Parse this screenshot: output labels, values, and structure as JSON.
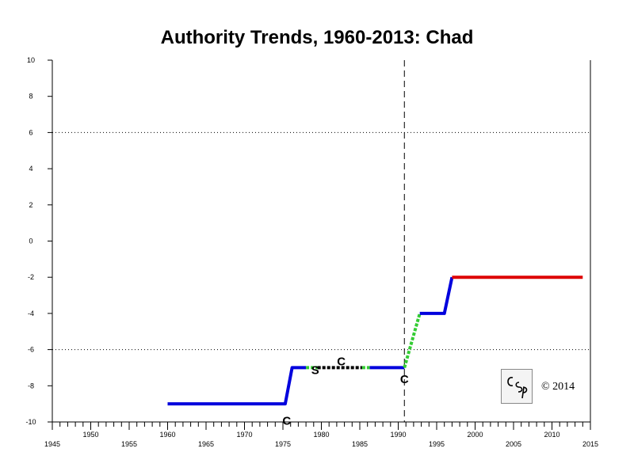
{
  "chart_data": {
    "type": "line",
    "title": "Authority Trends, 1960-2013: Chad",
    "xlabel": "",
    "ylabel": "",
    "xlim": [
      1945,
      2015
    ],
    "ylim": [
      -10,
      10
    ],
    "y_ticks": [
      10,
      8,
      6,
      4,
      2,
      0,
      -2,
      -4,
      -6,
      -8,
      -10
    ],
    "x_ticks_lower": [
      1945,
      1955,
      1965,
      1975,
      1985,
      1995,
      2005,
      2015
    ],
    "x_ticks_upper": [
      1950,
      1960,
      1970,
      1980,
      1990,
      2000,
      2010
    ],
    "grid": "dotted reference lines at +6 and -6",
    "reference_lines": [
      {
        "axis": "y",
        "value": 6,
        "style": "dotted"
      },
      {
        "axis": "y",
        "value": -6,
        "style": "dotted"
      },
      {
        "axis": "x",
        "value": 1990.8,
        "style": "dashed"
      }
    ],
    "segments": [
      {
        "style": "solid",
        "color": "#0000dd",
        "points": [
          [
            1960,
            -9
          ],
          [
            1975.3,
            -9
          ],
          [
            1976.2,
            -7
          ],
          [
            1978,
            -7
          ]
        ]
      },
      {
        "style": "dotted",
        "color": "#33cc33",
        "points": [
          [
            1978,
            -7
          ],
          [
            1979.5,
            -7
          ]
        ]
      },
      {
        "style": "dotted",
        "color": "#000000",
        "points": [
          [
            1979.5,
            -7
          ],
          [
            1985.3,
            -7
          ]
        ]
      },
      {
        "style": "dotted",
        "color": "#33cc33",
        "points": [
          [
            1985.3,
            -7
          ],
          [
            1986.3,
            -7
          ]
        ]
      },
      {
        "style": "solid",
        "color": "#0000dd",
        "points": [
          [
            1986.3,
            -7
          ],
          [
            1990.8,
            -7
          ]
        ]
      },
      {
        "style": "dotted",
        "color": "#33cc33",
        "points": [
          [
            1990.8,
            -7
          ],
          [
            1992.8,
            -4
          ]
        ]
      },
      {
        "style": "solid",
        "color": "#0000dd",
        "points": [
          [
            1992.8,
            -4
          ],
          [
            1996,
            -4
          ],
          [
            1997,
            -2
          ]
        ]
      },
      {
        "style": "solid",
        "color": "#dd0000",
        "points": [
          [
            1997,
            -2
          ],
          [
            2014,
            -2
          ]
        ]
      }
    ],
    "annotations": [
      {
        "text": "C",
        "x": 1975.5,
        "y": -9.9
      },
      {
        "text": "S",
        "x": 1979.2,
        "y": -7.1
      },
      {
        "text": "C",
        "x": 1982.6,
        "y": -6.6
      },
      {
        "text": "C",
        "x": 1990.8,
        "y": -7.6
      }
    ]
  },
  "logo": {
    "text": "CSP"
  },
  "copyright": "© 2014"
}
